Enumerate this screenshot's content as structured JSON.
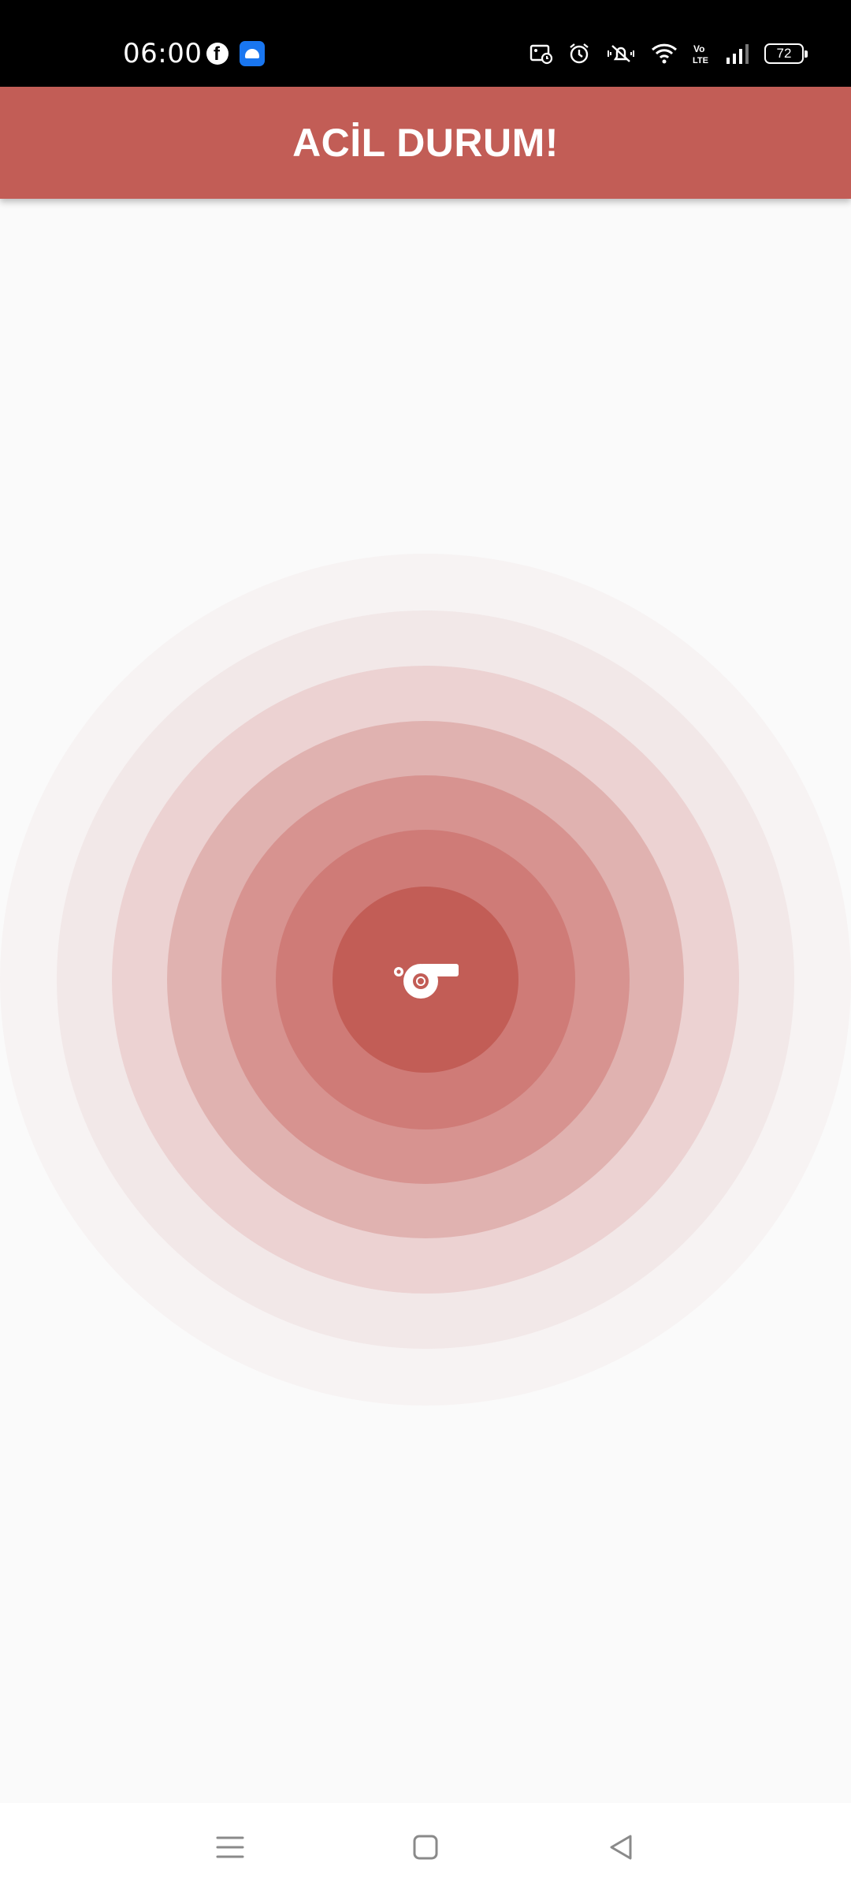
{
  "status_bar": {
    "time": "06:00",
    "battery_level": "72",
    "left_icons": [
      "facebook-icon",
      "android-app-icon"
    ],
    "right_icons": [
      "image-notification-icon",
      "alarm-icon",
      "vibrate-off-icon",
      "wifi-icon",
      "volte-icon",
      "signal-icon",
      "battery-icon"
    ]
  },
  "app_bar": {
    "title": "ACİL DURUM!",
    "color": "#c25d56"
  },
  "emergency_button": {
    "icon": "whistle-icon",
    "accent_color": "#c25d56"
  },
  "nav_bar": {
    "buttons": [
      "menu-icon",
      "home-icon",
      "back-icon"
    ]
  }
}
